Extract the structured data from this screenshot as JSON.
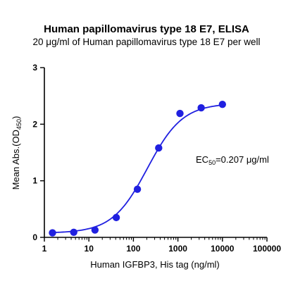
{
  "chart_data": {
    "type": "scatter",
    "title": "Human papillomavirus type 18 E7, ELISA",
    "subtitle": "20 μg/ml of Human papillomavirus type 18 E7 per well",
    "xlabel": "Human IGFBP3, His tag (ng/ml)",
    "ylabel": "Mean Abs.(OD450)",
    "ylabel_parts": {
      "main": "Mean Abs.(OD",
      "sub": "450",
      "tail": ")"
    },
    "x_scale": "log",
    "xlim": [
      1,
      100000
    ],
    "ylim": [
      0,
      3
    ],
    "x_ticks": [
      1,
      10,
      100,
      1000,
      10000,
      100000
    ],
    "x_tick_labels": [
      "1",
      "10",
      "100",
      "1000",
      "10000",
      "100000"
    ],
    "y_ticks": [
      0,
      1,
      2,
      3
    ],
    "y_tick_labels": [
      "0",
      "1",
      "2",
      "3"
    ],
    "grid": false,
    "series": [
      {
        "x": [
          1.52,
          4.57,
          13.7,
          41.2,
          123,
          370,
          1111,
          3333,
          10000
        ],
        "y": [
          0.08,
          0.09,
          0.13,
          0.35,
          0.85,
          1.58,
          2.19,
          2.29,
          2.35
        ],
        "color": "#2020e0",
        "fit": "4PL"
      }
    ],
    "annotation": {
      "main": "EC",
      "sub": "50",
      "tail": "=0.207 μg/ml"
    }
  }
}
